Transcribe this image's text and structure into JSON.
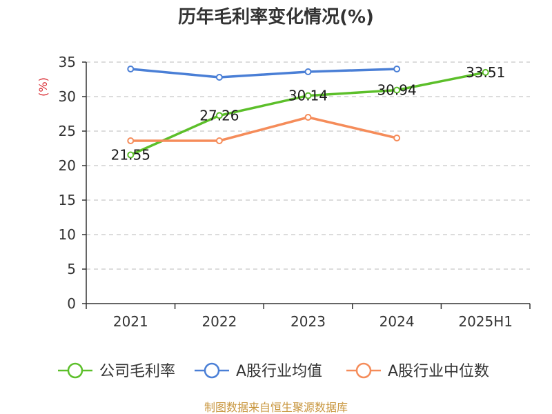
{
  "chart_data": {
    "type": "line",
    "title": "历年毛利率变化情况(%)",
    "ylabel": "(%)",
    "xlabel": "",
    "categories": [
      "2021",
      "2022",
      "2023",
      "2024",
      "2025H1"
    ],
    "ylim": [
      0,
      35
    ],
    "yticks": [
      0,
      5,
      10,
      15,
      20,
      25,
      30,
      35
    ],
    "grid": true,
    "legend_position": "bottom",
    "series": [
      {
        "name": "公司毛利率",
        "color": "#5cbf2a",
        "values": [
          21.55,
          27.26,
          30.14,
          30.94,
          33.51
        ],
        "labels": [
          "21.55",
          "27.26",
          "30.14",
          "30.94",
          "33.51"
        ]
      },
      {
        "name": "A股行业均值",
        "color": "#4a7fd6",
        "values": [
          34.0,
          32.8,
          33.6,
          34.0,
          null
        ]
      },
      {
        "name": "A股行业中位数",
        "color": "#f58c5a",
        "values": [
          23.6,
          23.6,
          27.0,
          24.0,
          null
        ]
      }
    ],
    "source": "制图数据来自恒生聚源数据库"
  }
}
